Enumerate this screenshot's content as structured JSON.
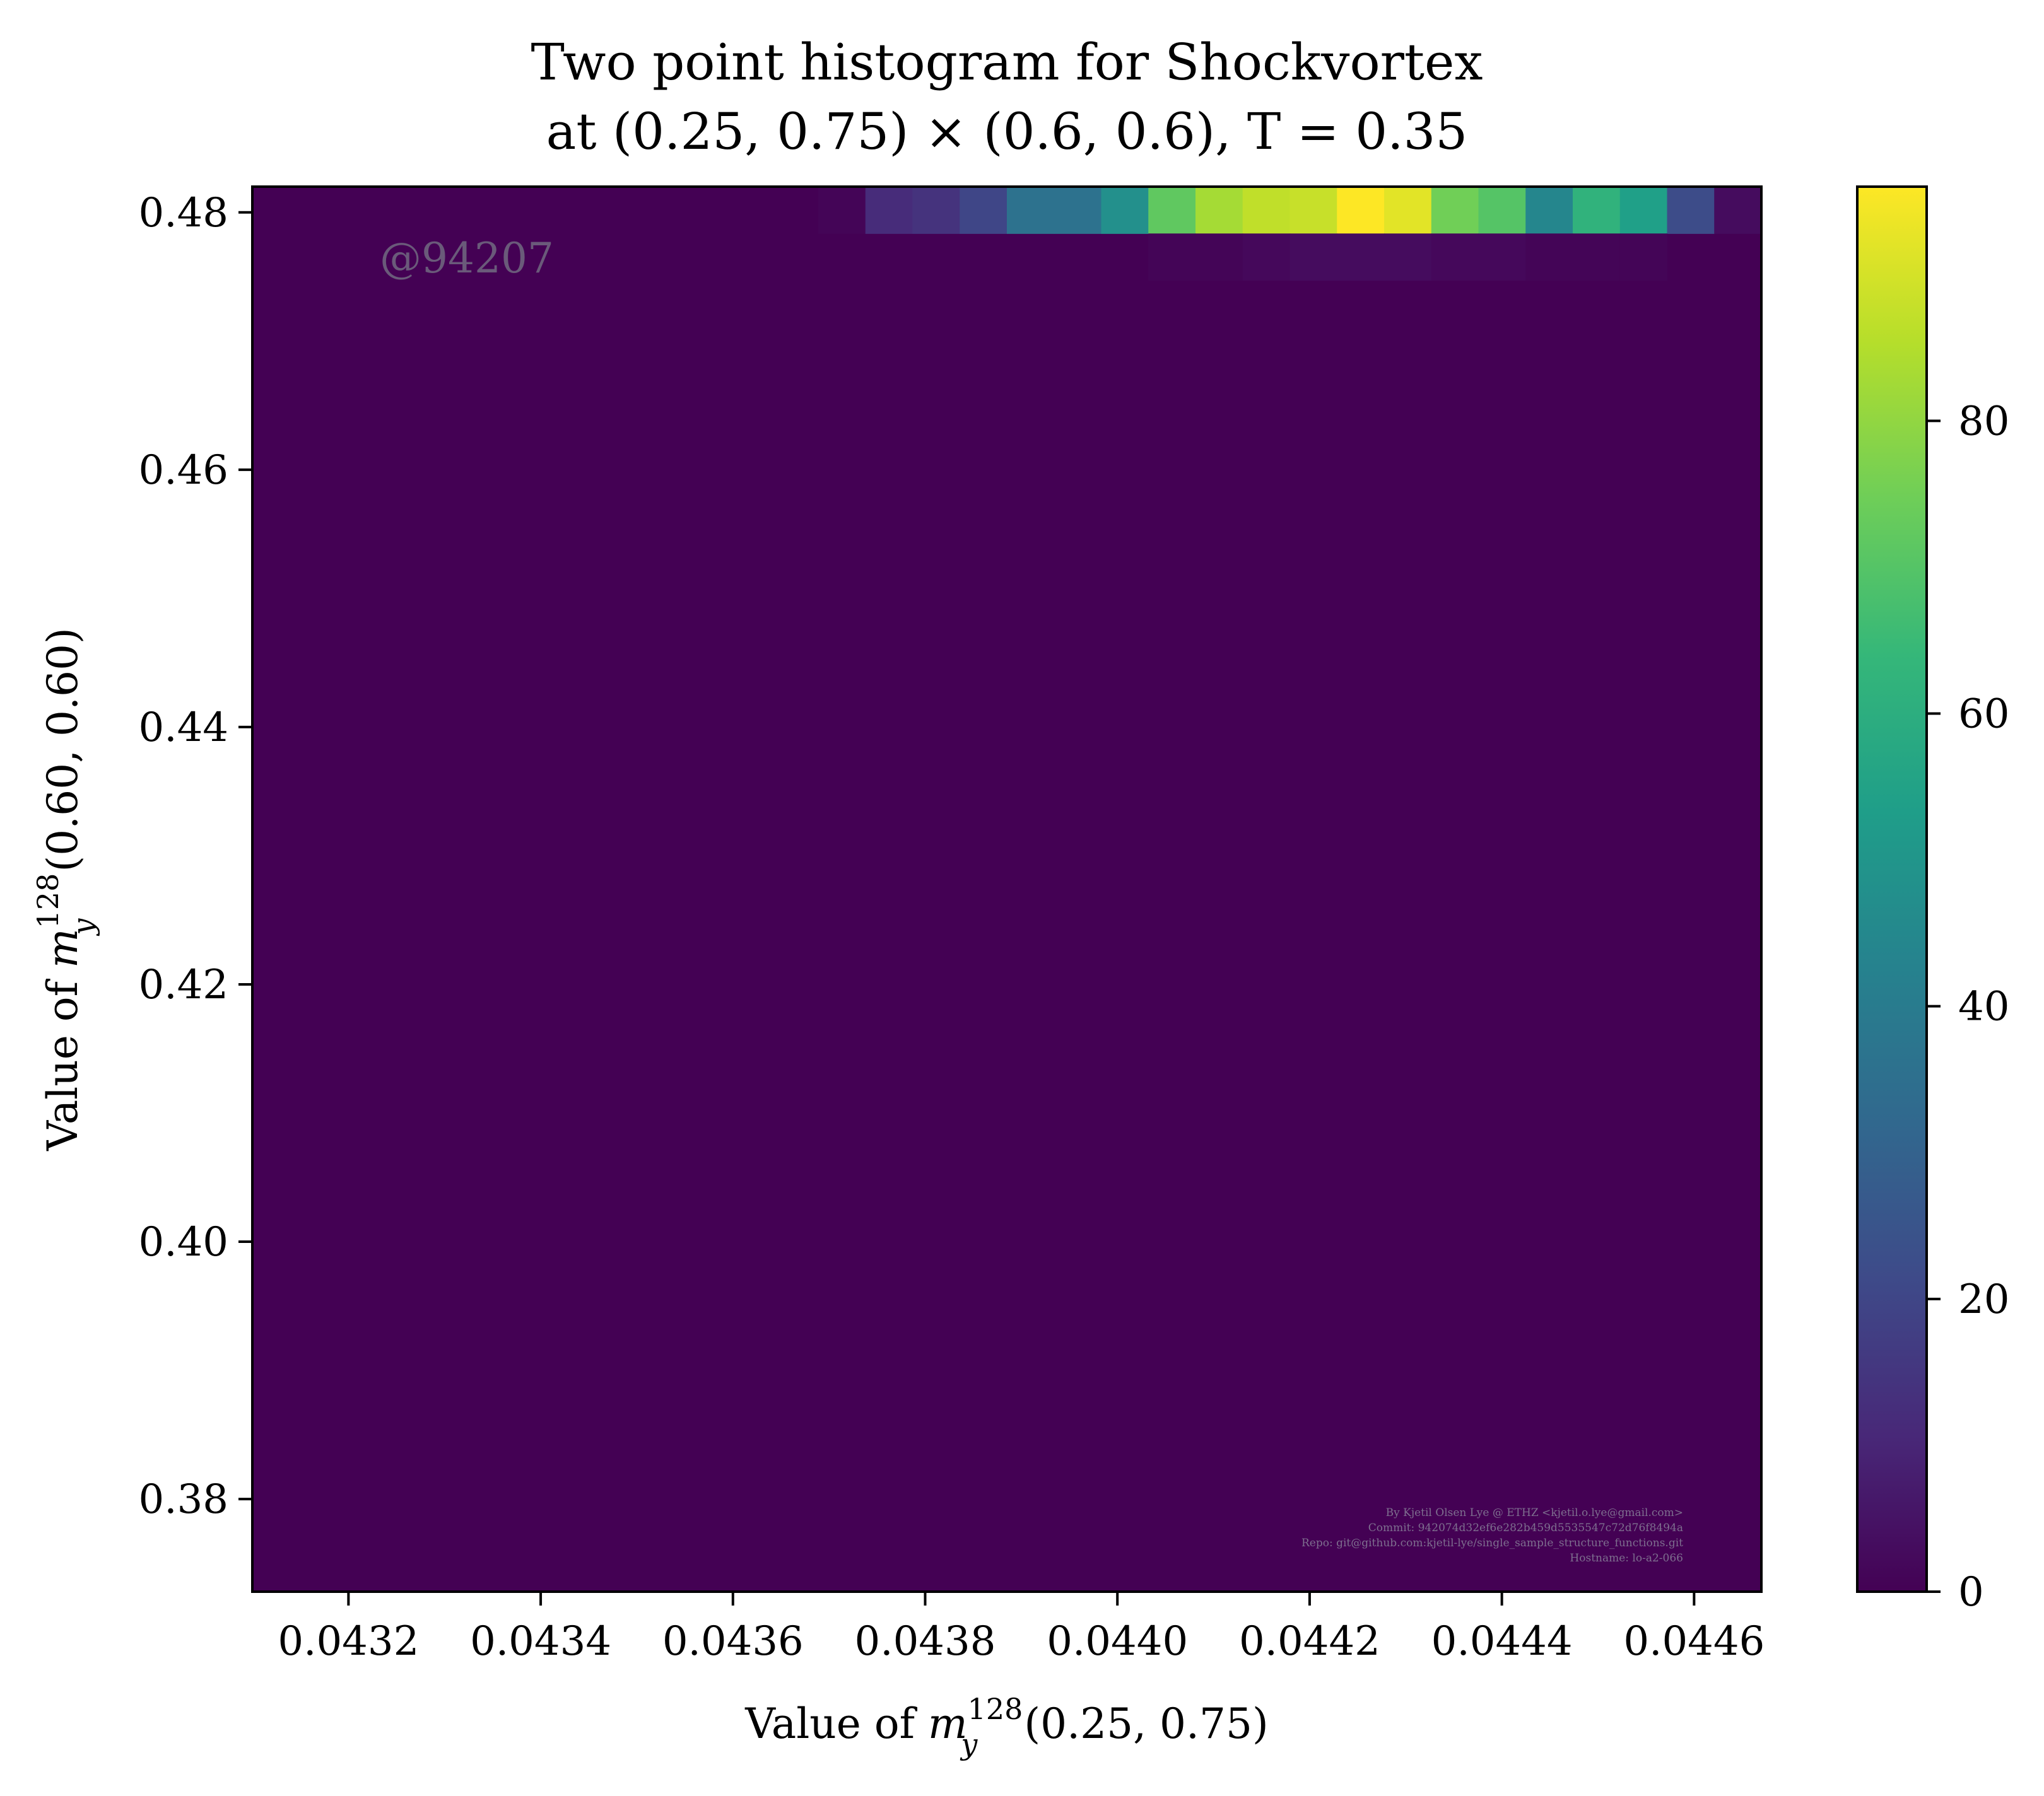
{
  "chart_data": {
    "type": "heatmap",
    "title_line1": "Two point histogram for Shockvortex",
    "title_line2": "at (0.25, 0.75) × (0.6, 0.6), T = 0.35",
    "xlabel": "Value of m_y^128(0.25, 0.75)",
    "xlabel_parts": {
      "pre": "Value of ",
      "var": "m",
      "sub": "y",
      "sup": "128",
      "post": "(0.25, 0.75)"
    },
    "ylabel": "Value of m_y^128(0.60, 0.60)",
    "ylabel_parts": {
      "pre": "Value of ",
      "var": "m",
      "sub": "y",
      "sup": "128",
      "post": "(0.60, 0.60)"
    },
    "xlim": [
      0.0431,
      0.04467
    ],
    "ylim": [
      0.3728,
      0.482
    ],
    "x_ticks": [
      "0.0432",
      "0.0434",
      "0.0436",
      "0.0438",
      "0.0440",
      "0.0442",
      "0.0444",
      "0.0446"
    ],
    "y_ticks": [
      "0.38",
      "0.40",
      "0.42",
      "0.44",
      "0.46",
      "0.48"
    ],
    "colorbar": {
      "colormap": "viridis",
      "min": 0,
      "max": 96,
      "ticks": [
        "0",
        "20",
        "40",
        "60",
        "80"
      ]
    },
    "bins_x": 32,
    "bins_y": 30,
    "nonzero_cells": {
      "top_row": [
        [
          12,
          1
        ],
        [
          13,
          12
        ],
        [
          14,
          14
        ],
        [
          15,
          20
        ],
        [
          16,
          36
        ],
        [
          17,
          36
        ],
        [
          18,
          48
        ],
        [
          19,
          72
        ],
        [
          20,
          83
        ],
        [
          21,
          87
        ],
        [
          22,
          88
        ],
        [
          23,
          96
        ],
        [
          24,
          92
        ],
        [
          25,
          75
        ],
        [
          26,
          70
        ],
        [
          27,
          44
        ],
        [
          28,
          62
        ],
        [
          29,
          54
        ],
        [
          30,
          22
        ],
        [
          31,
          3
        ]
      ],
      "second_row": [
        [
          19,
          1
        ],
        [
          20,
          1
        ],
        [
          21,
          2
        ],
        [
          22,
          3
        ],
        [
          23,
          3
        ],
        [
          24,
          3
        ],
        [
          25,
          2
        ],
        [
          26,
          2
        ],
        [
          27,
          1
        ],
        [
          28,
          1
        ],
        [
          29,
          1
        ]
      ]
    }
  },
  "watermark": "@94207",
  "credits": [
    "By Kjetil Olsen Lye @ ETHZ <kjetil.o.lye@gmail.com>",
    "Commit: 942074d32ef6e282b459d5535547c72d76f8494a",
    "Repo: git@github.com:kjetil-lye/single_sample_structure_functions.git",
    "Hostname: lo-a2-066"
  ]
}
